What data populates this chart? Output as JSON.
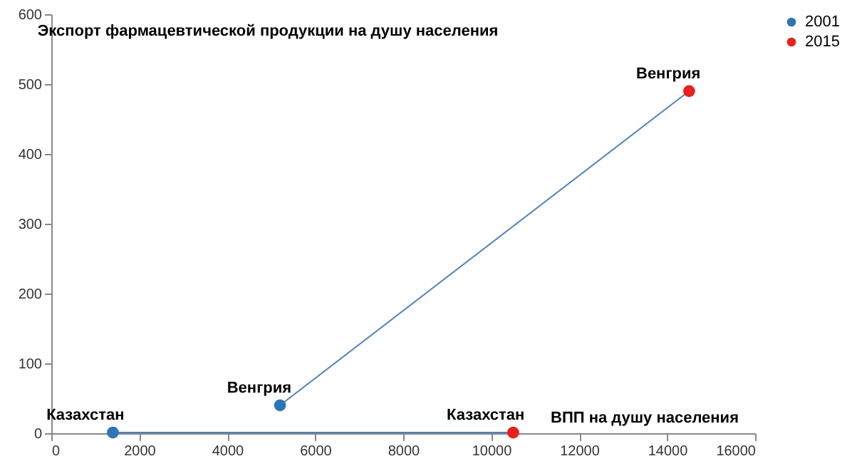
{
  "chart_data": {
    "type": "scatter",
    "title": "Экспорт фармацевтической продукции на душу населения",
    "xlabel": "ВПП на душу населения",
    "xlim": [
      0,
      16000
    ],
    "xticks": [
      0,
      2000,
      4000,
      6000,
      8000,
      10000,
      12000,
      14000,
      16000
    ],
    "ylim": [
      0,
      600
    ],
    "yticks": [
      0,
      100,
      200,
      300,
      400,
      500,
      600
    ],
    "series": [
      {
        "type": "line",
        "color": "#4f81bd",
        "x": [
          1400,
          10500
        ],
        "values": [
          1,
          1
        ]
      },
      {
        "type": "line",
        "color": "#4f81bd",
        "x": [
          5200,
          14500
        ],
        "values": [
          40,
          490
        ]
      },
      {
        "name": "2001",
        "color": "#2e75b6",
        "x": [
          1400,
          5200
        ],
        "values": [
          1,
          40
        ]
      },
      {
        "name": "2015",
        "color": "#e8211b",
        "x": [
          10500,
          14500
        ],
        "values": [
          1,
          490
        ]
      }
    ],
    "annotations": [
      {
        "text": "Казахстан",
        "x": 1400,
        "y": 1
      },
      {
        "text": "Венгрия",
        "x": 5200,
        "y": 40
      },
      {
        "text": "Казахстан",
        "x": 10500,
        "y": 1
      },
      {
        "text": "Венгрия",
        "x": 14500,
        "y": 490
      }
    ],
    "legend": "right"
  }
}
